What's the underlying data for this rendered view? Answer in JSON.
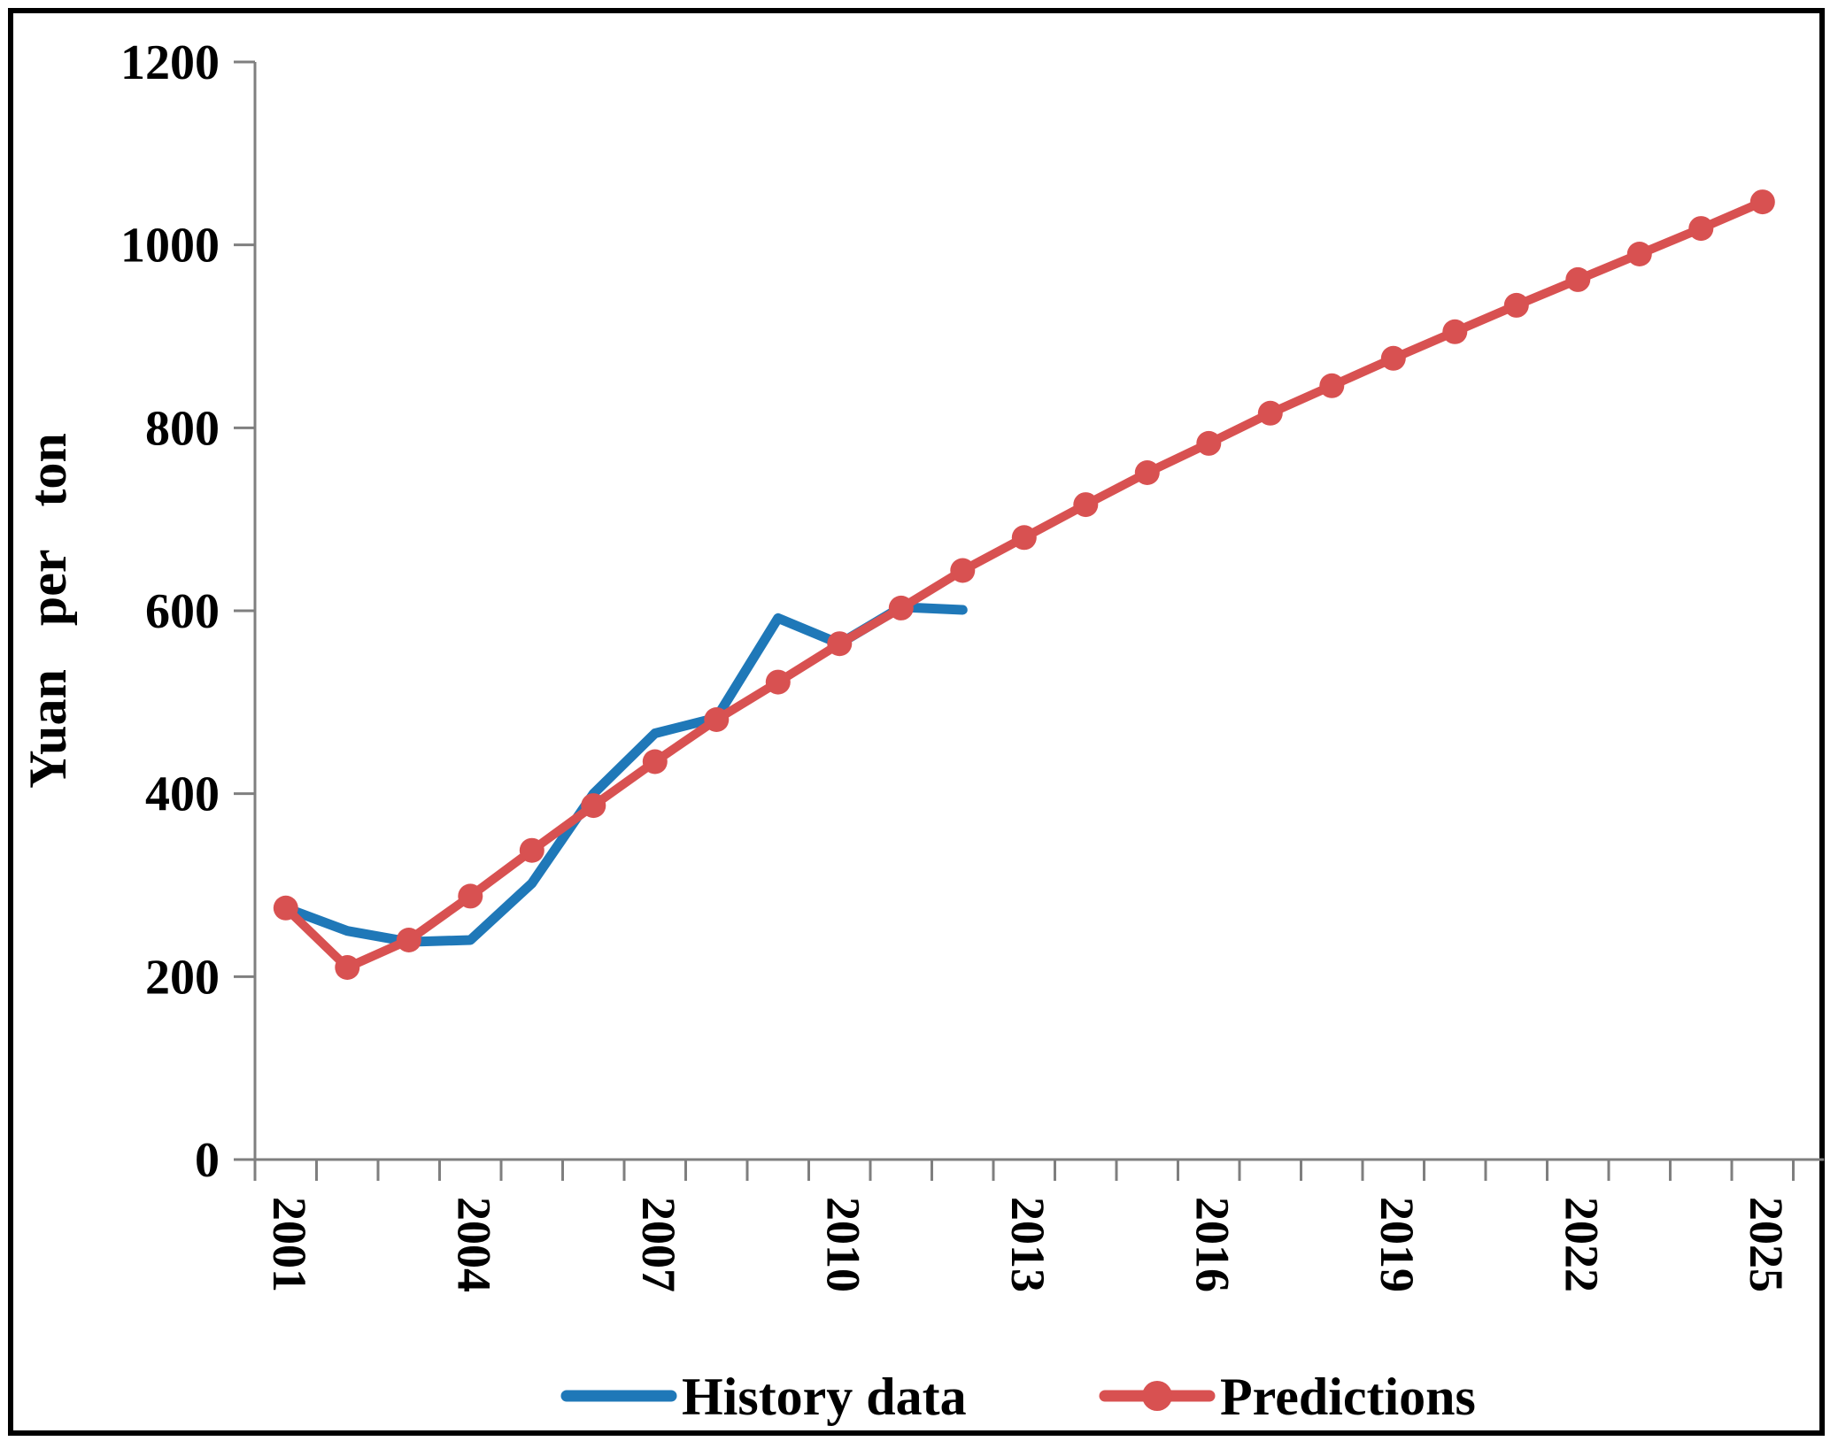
{
  "figure": {
    "background": "#FFFFFF",
    "border_color": "#000000",
    "axis_color": "#7F7F7F",
    "text_color": "#000000"
  },
  "chart_data": {
    "type": "line",
    "title": "",
    "xlabel": "",
    "ylabel": "Yuan per ton",
    "ylim": [
      0,
      1200
    ],
    "ytick_interval": 200,
    "y_ticks": [
      0,
      200,
      400,
      600,
      800,
      1000,
      1200
    ],
    "x_categories": [
      2001,
      2002,
      2003,
      2004,
      2005,
      2006,
      2007,
      2008,
      2009,
      2010,
      2011,
      2012,
      2013,
      2014,
      2015,
      2016,
      2017,
      2018,
      2019,
      2020,
      2021,
      2022,
      2023,
      2024,
      2025
    ],
    "x_labels_shown": [
      "2001",
      "2004",
      "2007",
      "2010",
      "2013",
      "2016",
      "2019",
      "2022",
      "2025"
    ],
    "x_label_interval": 3,
    "x_label_rotation_deg": 90,
    "grid": false,
    "legend_position": "bottom",
    "series": [
      {
        "name": "History data",
        "color": "#1F78B8",
        "marker": "none",
        "line_width": 11,
        "x": [
          2001,
          2002,
          2003,
          2004,
          2005,
          2006,
          2007,
          2008,
          2009,
          2010,
          2011,
          2012
        ],
        "values": [
          275,
          250,
          238,
          240,
          302,
          400,
          466,
          483,
          592,
          564,
          604,
          601
        ]
      },
      {
        "name": "Predictions",
        "color": "#D85151",
        "marker": "circle",
        "marker_radius": 14,
        "line_width": 10,
        "x": [
          2001,
          2002,
          2003,
          2004,
          2005,
          2006,
          2007,
          2008,
          2009,
          2010,
          2011,
          2012,
          2013,
          2014,
          2015,
          2016,
          2017,
          2018,
          2019,
          2020,
          2021,
          2022,
          2023,
          2024,
          2025
        ],
        "values": [
          275,
          210,
          240,
          288,
          338,
          387,
          435,
          481,
          522,
          564,
          603,
          644,
          680,
          716,
          751,
          783,
          816,
          846,
          876,
          905,
          934,
          962,
          990,
          1018,
          1047
        ]
      }
    ]
  }
}
